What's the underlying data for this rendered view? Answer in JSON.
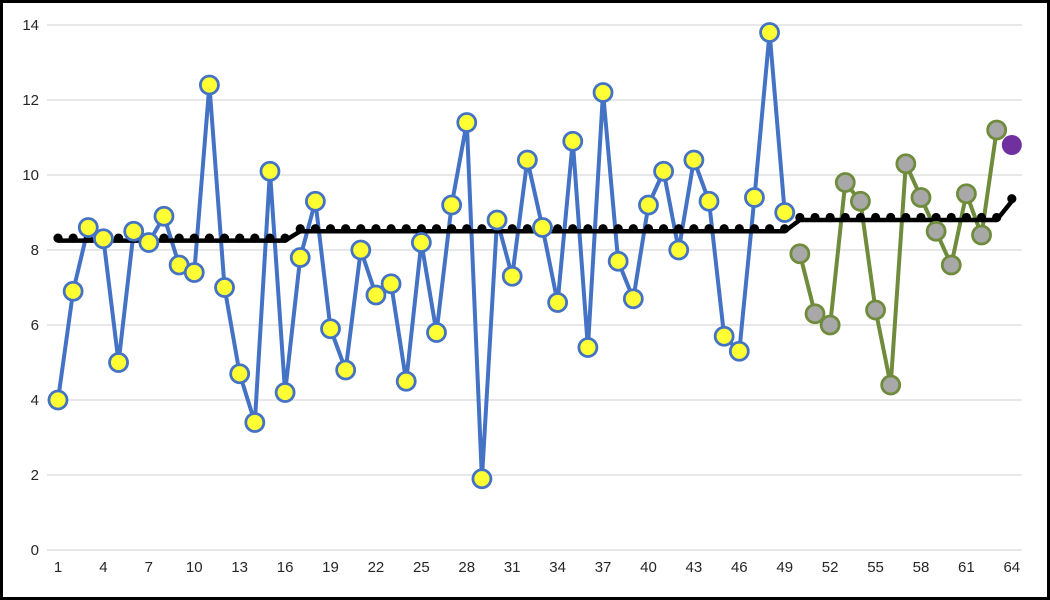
{
  "chart_data": {
    "type": "line",
    "title": "",
    "xlabel": "",
    "ylabel": "",
    "xlim": [
      1,
      64
    ],
    "ylim": [
      0,
      14
    ],
    "grid": "horizontal",
    "legend": "none",
    "grid_color": "#D9D9D9",
    "axis_text_color": "#262626",
    "xticks": [
      1,
      4,
      7,
      10,
      13,
      16,
      19,
      22,
      25,
      28,
      31,
      34,
      37,
      40,
      43,
      46,
      49,
      52,
      55,
      58,
      61,
      64
    ],
    "yticks": [
      0,
      2,
      4,
      6,
      8,
      10,
      12,
      14
    ],
    "series": [
      {
        "name": "blue-series",
        "type": "line-with-markers",
        "line_color": "#4472C4",
        "marker_fill": "#FFFF33",
        "marker_stroke": "#4472C4",
        "x_start": 1,
        "values": [
          4.0,
          6.9,
          8.6,
          8.3,
          5.0,
          8.5,
          8.2,
          8.9,
          7.6,
          7.4,
          12.4,
          7.0,
          4.7,
          3.4,
          10.1,
          4.2,
          7.8,
          9.3,
          5.9,
          4.8,
          8.0,
          6.8,
          7.1,
          4.5,
          8.2,
          5.8,
          9.2,
          11.4,
          1.9,
          8.8,
          7.3,
          10.4,
          8.6,
          6.6,
          10.9,
          5.4,
          12.2,
          7.7,
          6.7,
          9.2,
          10.1,
          8.0,
          10.4,
          9.3,
          5.7,
          5.3,
          9.4,
          13.8,
          9.0
        ]
      },
      {
        "name": "green-series",
        "type": "line-with-markers",
        "line_color": "#6F8B3C",
        "marker_fill": "#A8A8A8",
        "marker_stroke": "#6F8B3C",
        "x_start": 50,
        "values": [
          7.9,
          6.3,
          6.0,
          9.8,
          9.3,
          6.4,
          4.4,
          10.3,
          9.4,
          8.5,
          7.6,
          9.5,
          8.4,
          11.2
        ]
      },
      {
        "name": "black-trend-line",
        "type": "stepped-line-with-dots",
        "line_color": "#000000",
        "segments": [
          {
            "from": 1,
            "to": 16,
            "value": 8.25
          },
          {
            "from": 17,
            "to": 49,
            "value": 8.5
          },
          {
            "from": 50,
            "to": 63,
            "value": 8.8
          },
          {
            "from": 64,
            "to": 64,
            "value": 9.3
          }
        ]
      },
      {
        "name": "purple-point",
        "type": "single-marker",
        "marker_fill": "#7030A0",
        "x": 64,
        "value": 10.8
      }
    ]
  }
}
